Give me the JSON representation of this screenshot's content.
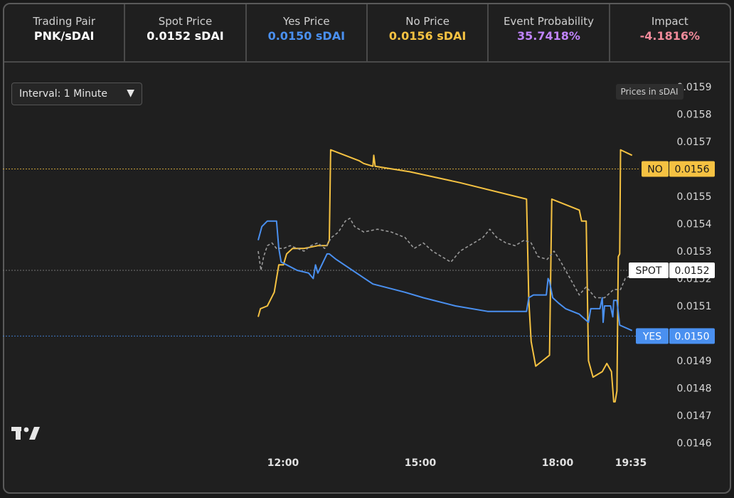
{
  "stats": [
    {
      "label": "Trading Pair",
      "value": "PNK/sDAI",
      "color": "#ffffff"
    },
    {
      "label": "Spot Price",
      "value": "0.0152 sDAI",
      "color": "#ffffff"
    },
    {
      "label": "Yes Price",
      "value": "0.0150 sDAI",
      "color": "#4a90f0"
    },
    {
      "label": "No Price",
      "value": "0.0156 sDAI",
      "color": "#f5c242"
    },
    {
      "label": "Event Probability",
      "value": "35.7418%",
      "color": "#c084fc"
    },
    {
      "label": "Impact",
      "value": "-4.1816%",
      "color": "#f08a9a"
    }
  ],
  "controls": {
    "interval_label": "Interval: 1 Minute",
    "caret": "▼",
    "units_badge": "Prices in sDAI"
  },
  "logo_icon": "tradingview-logo-icon",
  "chart_data": {
    "type": "line",
    "title": "",
    "xlabel": "",
    "ylabel": "",
    "ylim": [
      0.01456,
      0.01594
    ],
    "y_ticks": [
      "0.0159",
      "0.0158",
      "0.0157",
      "0.0156",
      "0.0155",
      "0.0154",
      "0.0153",
      "0.0152",
      "0.0151",
      "0.0150",
      "0.0149",
      "0.0148",
      "0.0147",
      "0.0146"
    ],
    "x_ticks": [
      "12:00",
      "15:00",
      "18:00",
      "19:35"
    ],
    "series": [
      {
        "name": "NO",
        "color": "#f5c242",
        "style": "solid",
        "last_value": "0.0156",
        "values": [
          [
            0.0,
            0.01506
          ],
          [
            0.05,
            0.01509
          ],
          [
            0.2,
            0.0151
          ],
          [
            0.35,
            0.01515
          ],
          [
            0.45,
            0.01525
          ],
          [
            0.55,
            0.01525
          ],
          [
            0.62,
            0.01529
          ],
          [
            0.75,
            0.01531
          ],
          [
            1.0,
            0.01531
          ],
          [
            1.3,
            0.01532
          ],
          [
            1.5,
            0.01532
          ],
          [
            1.55,
            0.01534
          ],
          [
            1.58,
            0.01567
          ],
          [
            2.2,
            0.01563
          ],
          [
            2.3,
            0.01562
          ],
          [
            2.5,
            0.01561
          ],
          [
            2.52,
            0.01565
          ],
          [
            2.55,
            0.01561
          ],
          [
            3.3,
            0.01559
          ],
          [
            4.4,
            0.01555
          ],
          [
            5.85,
            0.01549
          ],
          [
            5.9,
            0.01512
          ],
          [
            5.95,
            0.01497
          ],
          [
            6.05,
            0.01488
          ],
          [
            6.2,
            0.0149
          ],
          [
            6.35,
            0.01492
          ],
          [
            6.4,
            0.01549
          ],
          [
            7.0,
            0.01545
          ],
          [
            7.05,
            0.01541
          ],
          [
            7.15,
            0.01541
          ],
          [
            7.2,
            0.0149
          ],
          [
            7.3,
            0.01484
          ],
          [
            7.5,
            0.01486
          ],
          [
            7.6,
            0.01489
          ],
          [
            7.7,
            0.01486
          ],
          [
            7.75,
            0.01475
          ],
          [
            7.78,
            0.01475
          ],
          [
            7.82,
            0.01479
          ],
          [
            7.85,
            0.01528
          ],
          [
            7.88,
            0.01529
          ],
          [
            7.9,
            0.01567
          ],
          [
            8.15,
            0.01565
          ]
        ]
      },
      {
        "name": "YES",
        "color": "#4a90f0",
        "style": "solid",
        "last_value": "0.0150",
        "values": [
          [
            0.0,
            0.01534
          ],
          [
            0.08,
            0.01539
          ],
          [
            0.2,
            0.01541
          ],
          [
            0.4,
            0.01541
          ],
          [
            0.45,
            0.01531
          ],
          [
            0.5,
            0.01526
          ],
          [
            0.62,
            0.01525
          ],
          [
            0.85,
            0.01523
          ],
          [
            1.1,
            0.01522
          ],
          [
            1.2,
            0.0152
          ],
          [
            1.25,
            0.01525
          ],
          [
            1.3,
            0.01522
          ],
          [
            1.5,
            0.01529
          ],
          [
            1.55,
            0.01529
          ],
          [
            1.7,
            0.01527
          ],
          [
            2.5,
            0.01518
          ],
          [
            3.2,
            0.01515
          ],
          [
            3.6,
            0.01513
          ],
          [
            4.3,
            0.0151
          ],
          [
            5.0,
            0.01508
          ],
          [
            5.85,
            0.01508
          ],
          [
            5.9,
            0.01513
          ],
          [
            6.0,
            0.01514
          ],
          [
            6.28,
            0.01514
          ],
          [
            6.32,
            0.0152
          ],
          [
            6.35,
            0.01519
          ],
          [
            6.42,
            0.01513
          ],
          [
            6.55,
            0.01511
          ],
          [
            6.7,
            0.01509
          ],
          [
            7.0,
            0.01507
          ],
          [
            7.2,
            0.01504
          ],
          [
            7.25,
            0.01509
          ],
          [
            7.45,
            0.01509
          ],
          [
            7.5,
            0.01513
          ],
          [
            7.52,
            0.01504
          ],
          [
            7.55,
            0.0151
          ],
          [
            7.68,
            0.0151
          ],
          [
            7.73,
            0.01506
          ],
          [
            7.75,
            0.01512
          ],
          [
            7.82,
            0.01512
          ],
          [
            7.88,
            0.01503
          ],
          [
            8.15,
            0.01501
          ]
        ]
      },
      {
        "name": "SPOT",
        "color": "#9a9a9a",
        "style": "dashed",
        "last_value": "0.0152",
        "values": [
          [
            0.0,
            0.0153
          ],
          [
            0.06,
            0.01523
          ],
          [
            0.12,
            0.01528
          ],
          [
            0.2,
            0.01532
          ],
          [
            0.3,
            0.01533
          ],
          [
            0.4,
            0.01531
          ],
          [
            0.55,
            0.01531
          ],
          [
            0.7,
            0.01532
          ],
          [
            0.85,
            0.01531
          ],
          [
            1.0,
            0.0153
          ],
          [
            1.15,
            0.01532
          ],
          [
            1.3,
            0.01533
          ],
          [
            1.45,
            0.01531
          ],
          [
            1.6,
            0.01535
          ],
          [
            1.75,
            0.01537
          ],
          [
            1.9,
            0.01541
          ],
          [
            2.0,
            0.01542
          ],
          [
            2.1,
            0.01539
          ],
          [
            2.3,
            0.01537
          ],
          [
            2.6,
            0.01538
          ],
          [
            2.9,
            0.01537
          ],
          [
            3.2,
            0.01535
          ],
          [
            3.4,
            0.01531
          ],
          [
            3.6,
            0.01533
          ],
          [
            3.8,
            0.0153
          ],
          [
            4.0,
            0.01528
          ],
          [
            4.2,
            0.01526
          ],
          [
            4.4,
            0.0153
          ],
          [
            4.6,
            0.01532
          ],
          [
            4.9,
            0.01535
          ],
          [
            5.05,
            0.01538
          ],
          [
            5.2,
            0.01535
          ],
          [
            5.4,
            0.01533
          ],
          [
            5.6,
            0.01532
          ],
          [
            5.8,
            0.01534
          ],
          [
            5.95,
            0.01533
          ],
          [
            6.1,
            0.01528
          ],
          [
            6.3,
            0.01527
          ],
          [
            6.45,
            0.0153
          ],
          [
            6.6,
            0.01526
          ],
          [
            6.8,
            0.0152
          ],
          [
            7.0,
            0.01514
          ],
          [
            7.15,
            0.01517
          ],
          [
            7.35,
            0.01513
          ],
          [
            7.55,
            0.01513
          ],
          [
            7.75,
            0.01516
          ],
          [
            7.9,
            0.01516
          ],
          [
            8.0,
            0.0152
          ],
          [
            8.1,
            0.01521
          ]
        ]
      }
    ],
    "legend": "price-tags-right",
    "grid": false
  }
}
